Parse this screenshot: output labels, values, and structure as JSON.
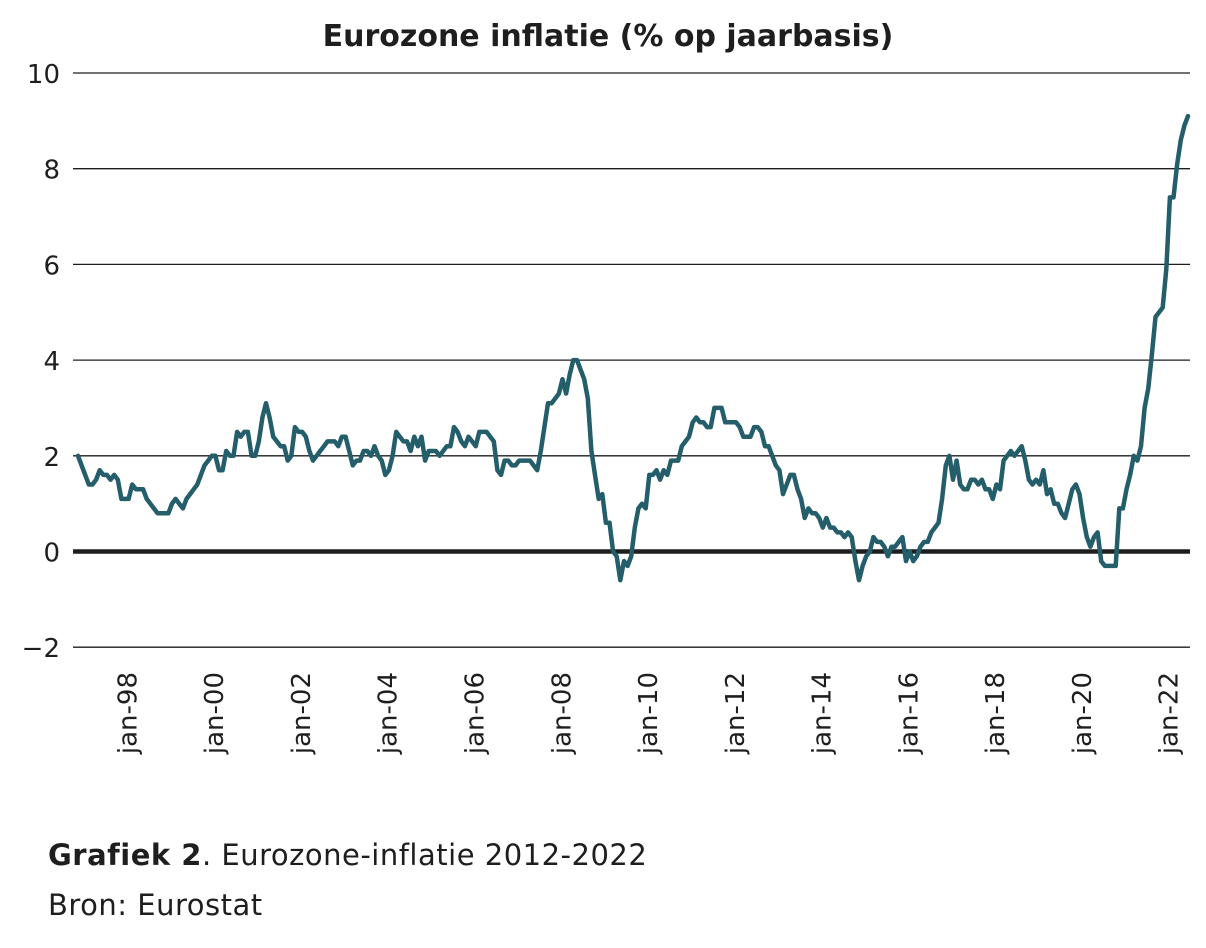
{
  "chart_data": {
    "type": "line",
    "title": "Eurozone inflatie (% op jaarbasis)",
    "xlabel": "",
    "ylabel": "",
    "ylim": [
      -2,
      10
    ],
    "yticks": [
      "10",
      "8",
      "6",
      "4",
      "2",
      "0",
      "-2"
    ],
    "ytick_values": [
      10,
      8,
      6,
      4,
      2,
      0,
      -2
    ],
    "grid": true,
    "x_start": "1997-01",
    "x_end": "2022-08",
    "frequency": "monthly",
    "xtick_labels": [
      "jan-98",
      "jan-00",
      "jan-02",
      "jan-04",
      "jan-06",
      "jan-08",
      "jan-10",
      "jan-12",
      "jan-14",
      "jan-16",
      "jan-18",
      "jan-20",
      "jan-22"
    ],
    "xtick_dates": [
      "1998-01",
      "2000-01",
      "2002-01",
      "2004-01",
      "2006-01",
      "2008-01",
      "2010-01",
      "2012-01",
      "2014-01",
      "2016-01",
      "2018-01",
      "2020-01",
      "2022-01"
    ],
    "series": [
      {
        "color": "#245e6b",
        "values": [
          2.0,
          1.8,
          1.6,
          1.4,
          1.4,
          1.5,
          1.7,
          1.6,
          1.6,
          1.5,
          1.6,
          1.5,
          1.1,
          1.1,
          1.1,
          1.4,
          1.3,
          1.3,
          1.3,
          1.1,
          1.0,
          0.9,
          0.8,
          0.8,
          0.8,
          0.8,
          1.0,
          1.1,
          1.0,
          0.9,
          1.1,
          1.2,
          1.3,
          1.4,
          1.6,
          1.8,
          1.9,
          2.0,
          2.0,
          1.7,
          1.7,
          2.1,
          2.0,
          2.0,
          2.5,
          2.4,
          2.5,
          2.5,
          2.0,
          2.0,
          2.3,
          2.8,
          3.1,
          2.8,
          2.4,
          2.3,
          2.2,
          2.2,
          1.9,
          2.0,
          2.6,
          2.5,
          2.5,
          2.4,
          2.1,
          1.9,
          2.0,
          2.1,
          2.2,
          2.3,
          2.3,
          2.3,
          2.2,
          2.4,
          2.4,
          2.1,
          1.8,
          1.9,
          1.9,
          2.1,
          2.1,
          2.0,
          2.2,
          2.0,
          1.9,
          1.6,
          1.7,
          2.0,
          2.5,
          2.4,
          2.3,
          2.3,
          2.1,
          2.4,
          2.2,
          2.4,
          1.9,
          2.1,
          2.1,
          2.1,
          2.0,
          2.1,
          2.2,
          2.2,
          2.6,
          2.5,
          2.3,
          2.2,
          2.4,
          2.3,
          2.2,
          2.5,
          2.5,
          2.5,
          2.4,
          2.3,
          1.7,
          1.6,
          1.9,
          1.9,
          1.8,
          1.8,
          1.9,
          1.9,
          1.9,
          1.9,
          1.8,
          1.7,
          2.1,
          2.6,
          3.1,
          3.1,
          3.2,
          3.3,
          3.6,
          3.3,
          3.7,
          4.0,
          4.0,
          3.8,
          3.6,
          3.2,
          2.1,
          1.6,
          1.1,
          1.2,
          0.6,
          0.6,
          0.0,
          -0.1,
          -0.6,
          -0.2,
          -0.3,
          -0.1,
          0.5,
          0.9,
          1.0,
          0.9,
          1.6,
          1.6,
          1.7,
          1.5,
          1.7,
          1.6,
          1.9,
          1.9,
          1.9,
          2.2,
          2.3,
          2.4,
          2.7,
          2.8,
          2.7,
          2.7,
          2.6,
          2.6,
          3.0,
          3.0,
          3.0,
          2.7,
          2.7,
          2.7,
          2.7,
          2.6,
          2.4,
          2.4,
          2.4,
          2.6,
          2.6,
          2.5,
          2.2,
          2.2,
          2.0,
          1.8,
          1.7,
          1.2,
          1.4,
          1.6,
          1.6,
          1.3,
          1.1,
          0.7,
          0.9,
          0.8,
          0.8,
          0.7,
          0.5,
          0.7,
          0.5,
          0.5,
          0.4,
          0.4,
          0.3,
          0.4,
          0.3,
          -0.2,
          -0.6,
          -0.3,
          -0.1,
          0.0,
          0.3,
          0.2,
          0.2,
          0.1,
          -0.1,
          0.1,
          0.1,
          0.2,
          0.3,
          -0.2,
          0.0,
          -0.2,
          -0.1,
          0.1,
          0.2,
          0.2,
          0.4,
          0.5,
          0.6,
          1.1,
          1.8,
          2.0,
          1.5,
          1.9,
          1.4,
          1.3,
          1.3,
          1.5,
          1.5,
          1.4,
          1.5,
          1.3,
          1.3,
          1.1,
          1.4,
          1.3,
          1.9,
          2.0,
          2.1,
          2.0,
          2.1,
          2.2,
          1.9,
          1.5,
          1.4,
          1.5,
          1.4,
          1.7,
          1.2,
          1.3,
          1.0,
          1.0,
          0.8,
          0.7,
          1.0,
          1.3,
          1.4,
          1.2,
          0.7,
          0.3,
          0.1,
          0.3,
          0.4,
          -0.2,
          -0.3,
          -0.3,
          -0.3,
          -0.3,
          0.9,
          0.9,
          1.3,
          1.6,
          2.0,
          1.9,
          2.2,
          3.0,
          3.4,
          4.1,
          4.9,
          5.0,
          5.1,
          5.9,
          7.4,
          7.4,
          8.1,
          8.6,
          8.9,
          9.1
        ]
      }
    ]
  },
  "caption": {
    "label": "Grafiek 2",
    "text": ". Eurozone-inflatie 2012-2022",
    "source": "Bron: Eurostat"
  }
}
